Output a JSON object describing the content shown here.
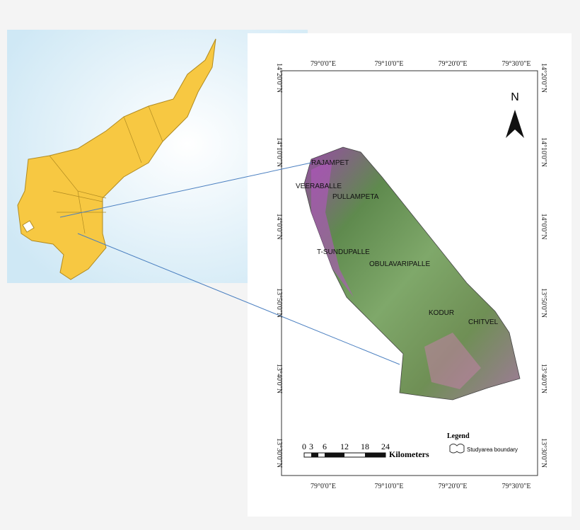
{
  "map": {
    "longitude_labels": [
      "79°0'0\"E",
      "79°10'0\"E",
      "79°20'0\"E",
      "79°30'0\"E"
    ],
    "latitude_labels": [
      "14°20'0\"N",
      "14°10'0\"N",
      "14°0'0\"N",
      "13°50'0\"N",
      "13°40'0\"N",
      "13°30'0\"N"
    ],
    "north": "N",
    "places": [
      "RAJAMPET",
      "VEERABALLE",
      "PULLAMPETA",
      "T-SUNDUPALLE",
      "OBULAVARIPALLE",
      "KODUR",
      "CHITVEL"
    ],
    "scale_bar": {
      "ticks": [
        0,
        3,
        6,
        12,
        18,
        24
      ],
      "unit": "Kilometers"
    },
    "legend": {
      "title": "Legend",
      "entry": "Studyarea boundary"
    }
  }
}
